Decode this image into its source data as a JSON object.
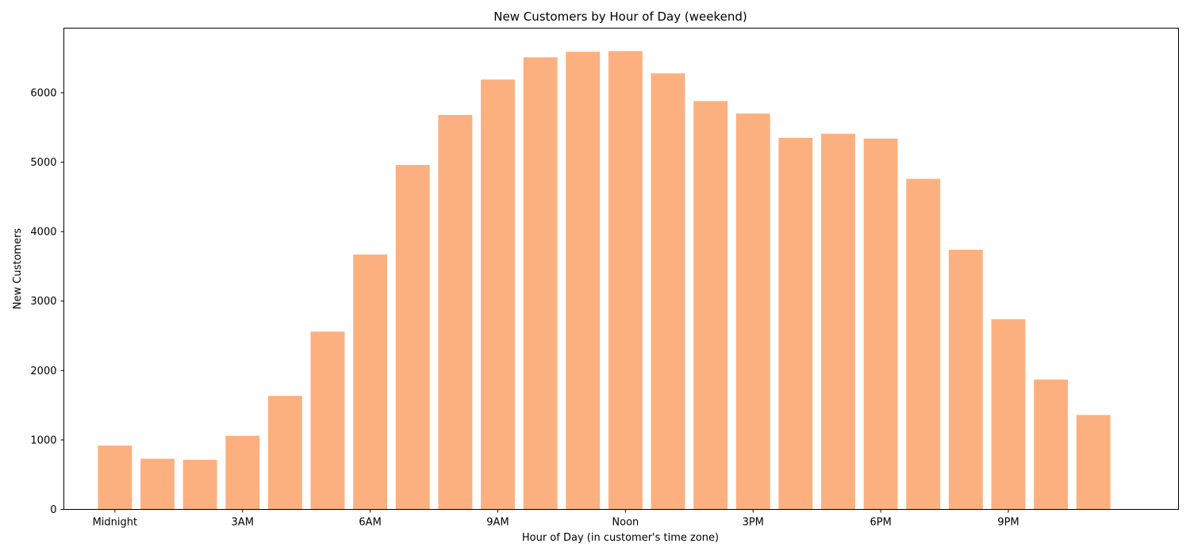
{
  "chart_data": {
    "type": "bar",
    "title": "New Customers by Hour of Day (weekend)",
    "xlabel": "Hour of Day (in customer's time zone)",
    "ylabel": "New Customers",
    "hours": [
      0,
      1,
      2,
      3,
      4,
      5,
      6,
      7,
      8,
      9,
      10,
      11,
      12,
      13,
      14,
      15,
      16,
      17,
      18,
      19,
      20,
      21,
      22,
      23
    ],
    "values": [
      920,
      730,
      715,
      1060,
      1635,
      2560,
      3670,
      4960,
      5680,
      6190,
      6510,
      6590,
      6600,
      6280,
      5880,
      5700,
      5350,
      5410,
      5340,
      4760,
      3740,
      2740,
      1870,
      1360
    ],
    "x_ticks": [
      {
        "hour": 0,
        "label": "Midnight"
      },
      {
        "hour": 3,
        "label": "3AM"
      },
      {
        "hour": 6,
        "label": "6AM"
      },
      {
        "hour": 9,
        "label": "9AM"
      },
      {
        "hour": 12,
        "label": "Noon"
      },
      {
        "hour": 15,
        "label": "3PM"
      },
      {
        "hour": 18,
        "label": "6PM"
      },
      {
        "hour": 21,
        "label": "9PM"
      }
    ],
    "y_ticks": [
      0,
      1000,
      2000,
      3000,
      4000,
      5000,
      6000
    ],
    "xlim": [
      -1.2,
      25
    ],
    "ylim": [
      0,
      6930
    ],
    "bar_color": "#fdb07f",
    "grid": false,
    "legend": "none"
  }
}
